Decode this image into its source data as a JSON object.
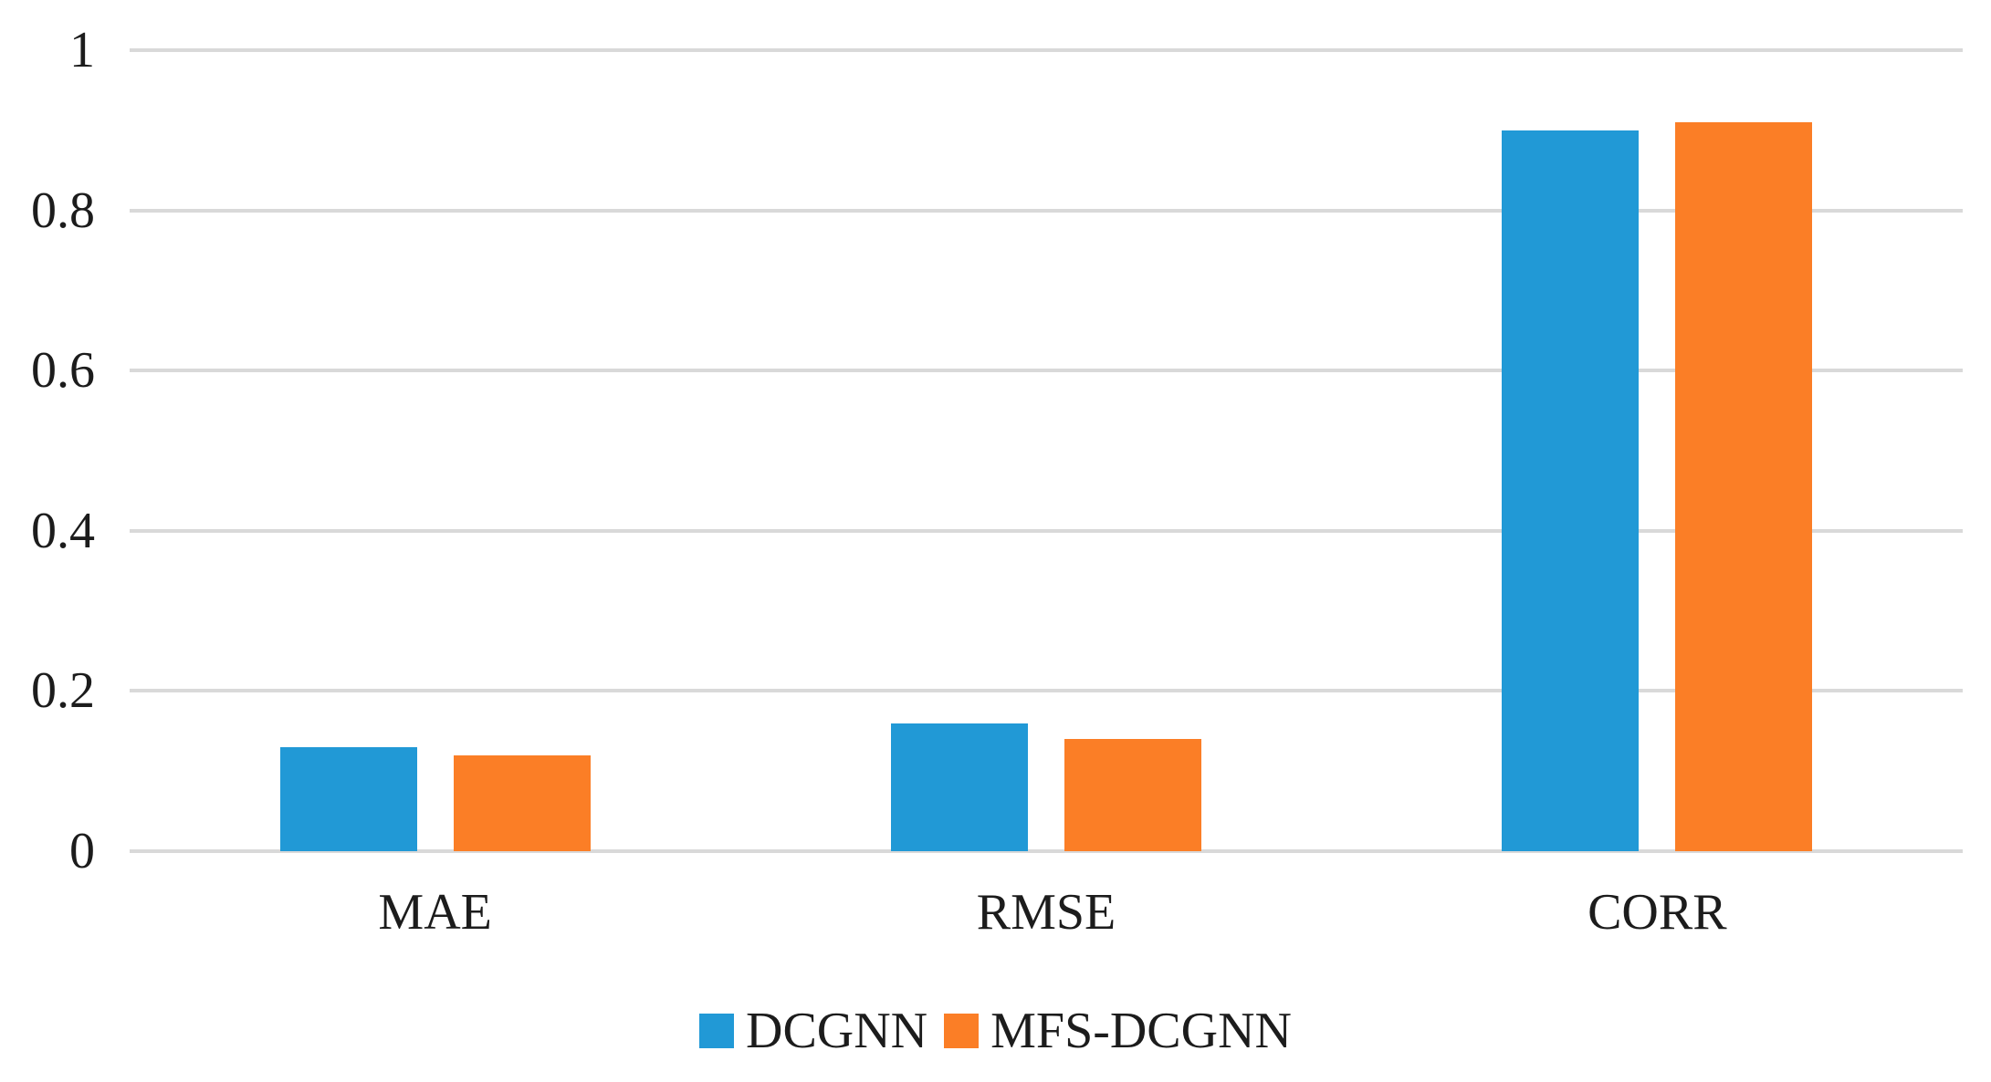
{
  "figure": {
    "background_color": "#FFFFFF",
    "text_color": "#1C1C1C",
    "gridline_color": "#D9D9D9"
  },
  "chart_data": {
    "type": "bar",
    "categories": [
      "MAE",
      "RMSE",
      "CORR"
    ],
    "series": [
      {
        "name": "DCGNN",
        "color": "#2199D6",
        "values": [
          0.13,
          0.16,
          0.9
        ]
      },
      {
        "name": "MFS-DCGNN",
        "color": "#FB7E26",
        "values": [
          0.12,
          0.14,
          0.91
        ]
      }
    ],
    "ylim": [
      0,
      1
    ],
    "ytick_labels": [
      "0",
      "0.2",
      "0.4",
      "0.6",
      "0.8",
      "1"
    ],
    "grid": "horizontal",
    "legend_position": "bottom",
    "legend": [
      "DCGNN",
      "MFS-DCGNN"
    ]
  }
}
